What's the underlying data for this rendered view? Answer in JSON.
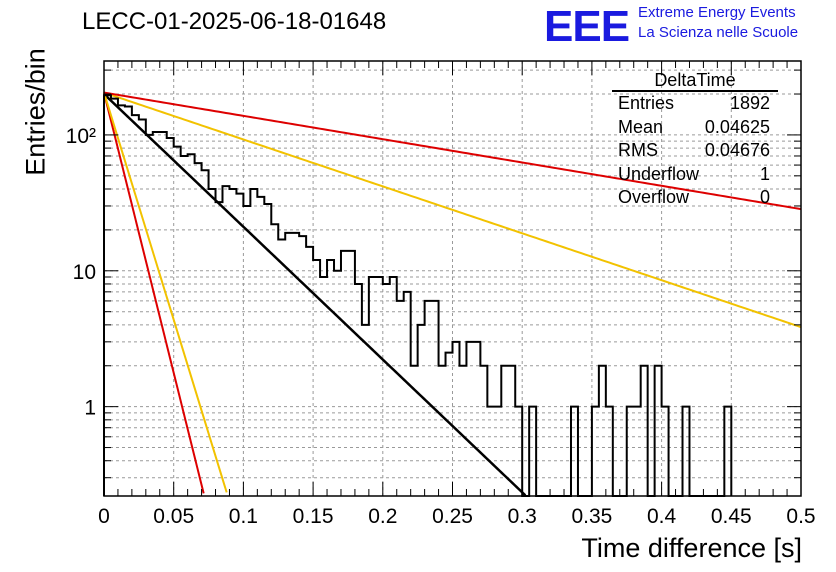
{
  "title": "LECC-01-2025-06-18-01648",
  "logo": {
    "mark": "EEE",
    "line1": "Extreme Energy Events",
    "line2": "La Scienza nelle Scuole"
  },
  "stats": {
    "header": "DeltaTime",
    "rows": [
      {
        "label": "Entries",
        "value": "1892"
      },
      {
        "label": "Mean",
        "value": "0.04625"
      },
      {
        "label": "RMS",
        "value": "0.04676"
      },
      {
        "label": "Underflow",
        "value": "1"
      },
      {
        "label": "Overflow",
        "value": "0"
      }
    ]
  },
  "colors": {
    "histogram": "#000000",
    "fit": "#000000",
    "red": "#dd0000",
    "yellow": "#f2c200",
    "grid": "#9a9a9a"
  },
  "chart_data": {
    "type": "histogram",
    "xlabel": "Time difference [s]",
    "ylabel": "Entries/bin",
    "xlim": [
      0,
      0.5
    ],
    "ylim": [
      0.22,
      350
    ],
    "yscale": "log",
    "grid": true,
    "legend": "top-right",
    "bin_width": 0.005,
    "xticks": [
      "0",
      "0.05",
      "0.1",
      "0.15",
      "0.2",
      "0.25",
      "0.3",
      "0.35",
      "0.4",
      "0.45",
      "0.5"
    ],
    "xtick_values": [
      0,
      0.05,
      0.1,
      0.15,
      0.2,
      0.25,
      0.3,
      0.35,
      0.4,
      0.45,
      0.5
    ],
    "ytick_values": [
      1,
      10,
      100
    ],
    "ytick_labels": [
      "1",
      "10",
      "10²"
    ],
    "bins": [
      [
        0,
        196
      ],
      [
        0.005,
        185
      ],
      [
        0.01,
        165
      ],
      [
        0.015,
        162
      ],
      [
        0.02,
        140
      ],
      [
        0.025,
        130
      ],
      [
        0.03,
        100
      ],
      [
        0.035,
        105
      ],
      [
        0.04,
        105
      ],
      [
        0.045,
        95
      ],
      [
        0.05,
        82
      ],
      [
        0.055,
        70
      ],
      [
        0.06,
        72
      ],
      [
        0.065,
        62
      ],
      [
        0.07,
        55
      ],
      [
        0.075,
        40
      ],
      [
        0.08,
        32
      ],
      [
        0.085,
        42
      ],
      [
        0.09,
        40
      ],
      [
        0.095,
        37
      ],
      [
        0.1,
        30
      ],
      [
        0.105,
        40
      ],
      [
        0.11,
        35
      ],
      [
        0.115,
        31
      ],
      [
        0.12,
        22
      ],
      [
        0.125,
        17
      ],
      [
        0.13,
        19
      ],
      [
        0.135,
        19
      ],
      [
        0.14,
        18
      ],
      [
        0.145,
        15
      ],
      [
        0.15,
        12
      ],
      [
        0.155,
        9
      ],
      [
        0.16,
        12
      ],
      [
        0.165,
        10
      ],
      [
        0.17,
        14
      ],
      [
        0.175,
        14
      ],
      [
        0.18,
        8
      ],
      [
        0.185,
        4
      ],
      [
        0.19,
        9
      ],
      [
        0.195,
        9
      ],
      [
        0.2,
        8
      ],
      [
        0.205,
        9
      ],
      [
        0.21,
        6
      ],
      [
        0.215,
        7
      ],
      [
        0.22,
        2
      ],
      [
        0.225,
        4
      ],
      [
        0.23,
        6
      ],
      [
        0.235,
        6
      ],
      [
        0.24,
        2
      ],
      [
        0.245,
        2.5
      ],
      [
        0.25,
        3
      ],
      [
        0.255,
        2
      ],
      [
        0.26,
        3
      ],
      [
        0.265,
        3
      ],
      [
        0.27,
        2
      ],
      [
        0.275,
        1
      ],
      [
        0.28,
        1
      ],
      [
        0.285,
        2
      ],
      [
        0.29,
        2
      ],
      [
        0.295,
        1
      ],
      [
        0.3,
        0
      ],
      [
        0.305,
        1
      ],
      [
        0.31,
        0
      ],
      [
        0.315,
        0
      ],
      [
        0.32,
        0
      ],
      [
        0.325,
        0
      ],
      [
        0.33,
        0
      ],
      [
        0.335,
        1
      ],
      [
        0.34,
        0
      ],
      [
        0.345,
        0
      ],
      [
        0.35,
        1
      ],
      [
        0.355,
        2
      ],
      [
        0.36,
        1
      ],
      [
        0.365,
        0
      ],
      [
        0.37,
        0
      ],
      [
        0.375,
        1
      ],
      [
        0.38,
        1
      ],
      [
        0.385,
        2
      ],
      [
        0.39,
        0
      ],
      [
        0.395,
        2
      ],
      [
        0.4,
        1
      ],
      [
        0.405,
        0
      ],
      [
        0.41,
        0
      ],
      [
        0.415,
        1
      ],
      [
        0.42,
        0
      ],
      [
        0.425,
        0
      ],
      [
        0.43,
        0
      ],
      [
        0.435,
        0
      ],
      [
        0.44,
        0
      ],
      [
        0.445,
        1
      ]
    ],
    "curves": [
      {
        "name": "fit",
        "color": "#000000",
        "width": 2.5,
        "y0": 200,
        "rate": 22.5,
        "xmax": 0.31
      },
      {
        "name": "red-steep",
        "color": "#dd0000",
        "width": 2,
        "y0": 205,
        "rate": 95,
        "xmax": 0.0715
      },
      {
        "name": "yellow-steep",
        "color": "#f2c200",
        "width": 2,
        "y0": 205,
        "rate": 77,
        "xmax": 0.088
      },
      {
        "name": "yellow-shallow",
        "color": "#f2c200",
        "width": 2,
        "y0": 205,
        "rate": 7.95,
        "xmax": 0.5
      },
      {
        "name": "red-shallow",
        "color": "#dd0000",
        "width": 2,
        "y0": 205,
        "rate": 3.95,
        "xmax": 0.5
      }
    ]
  }
}
